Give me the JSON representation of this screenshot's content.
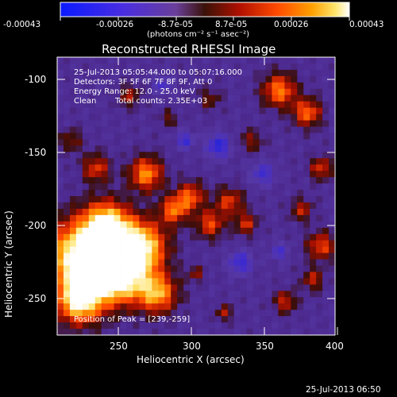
{
  "colorbar": {
    "ticks": [
      "-0.00043",
      "-0.00026",
      "-8.7e-05",
      "8.7e-05",
      "0.00026",
      "0.00043"
    ],
    "unit_label": "(photons cm⁻² s⁻¹ asec⁻²)",
    "colors": [
      "#0a1aff",
      "#5a2bd6",
      "#6a3fa0",
      "#4a1a10",
      "#c01000",
      "#ff4a00",
      "#ff9a00",
      "#ffe24a",
      "#ffffff"
    ]
  },
  "title": "Reconstructed RHESSI Image",
  "axes": {
    "x_label": "Heliocentric X (arcsec)",
    "y_label": "Heliocentric Y (arcsec)",
    "x_ticks": [
      "250",
      "300",
      "350",
      "400"
    ],
    "y_ticks": [
      "-100",
      "-150",
      "-200",
      "-250"
    ]
  },
  "info": {
    "time_range": "25-Jul-2013 05:05:44.000 to 05:07:16.000",
    "detectors": "Detectors: 3F 5F 6F 7F 8F 9F, Att 0",
    "energy": "Energy Range: 12.0 - 25.0 keV",
    "method": "Clean",
    "counts": "Total counts: 2.35E+03"
  },
  "peak_label": "Position of Peak = [239,-259]",
  "footer_timestamp": "25-Jul-2013 06:50"
}
